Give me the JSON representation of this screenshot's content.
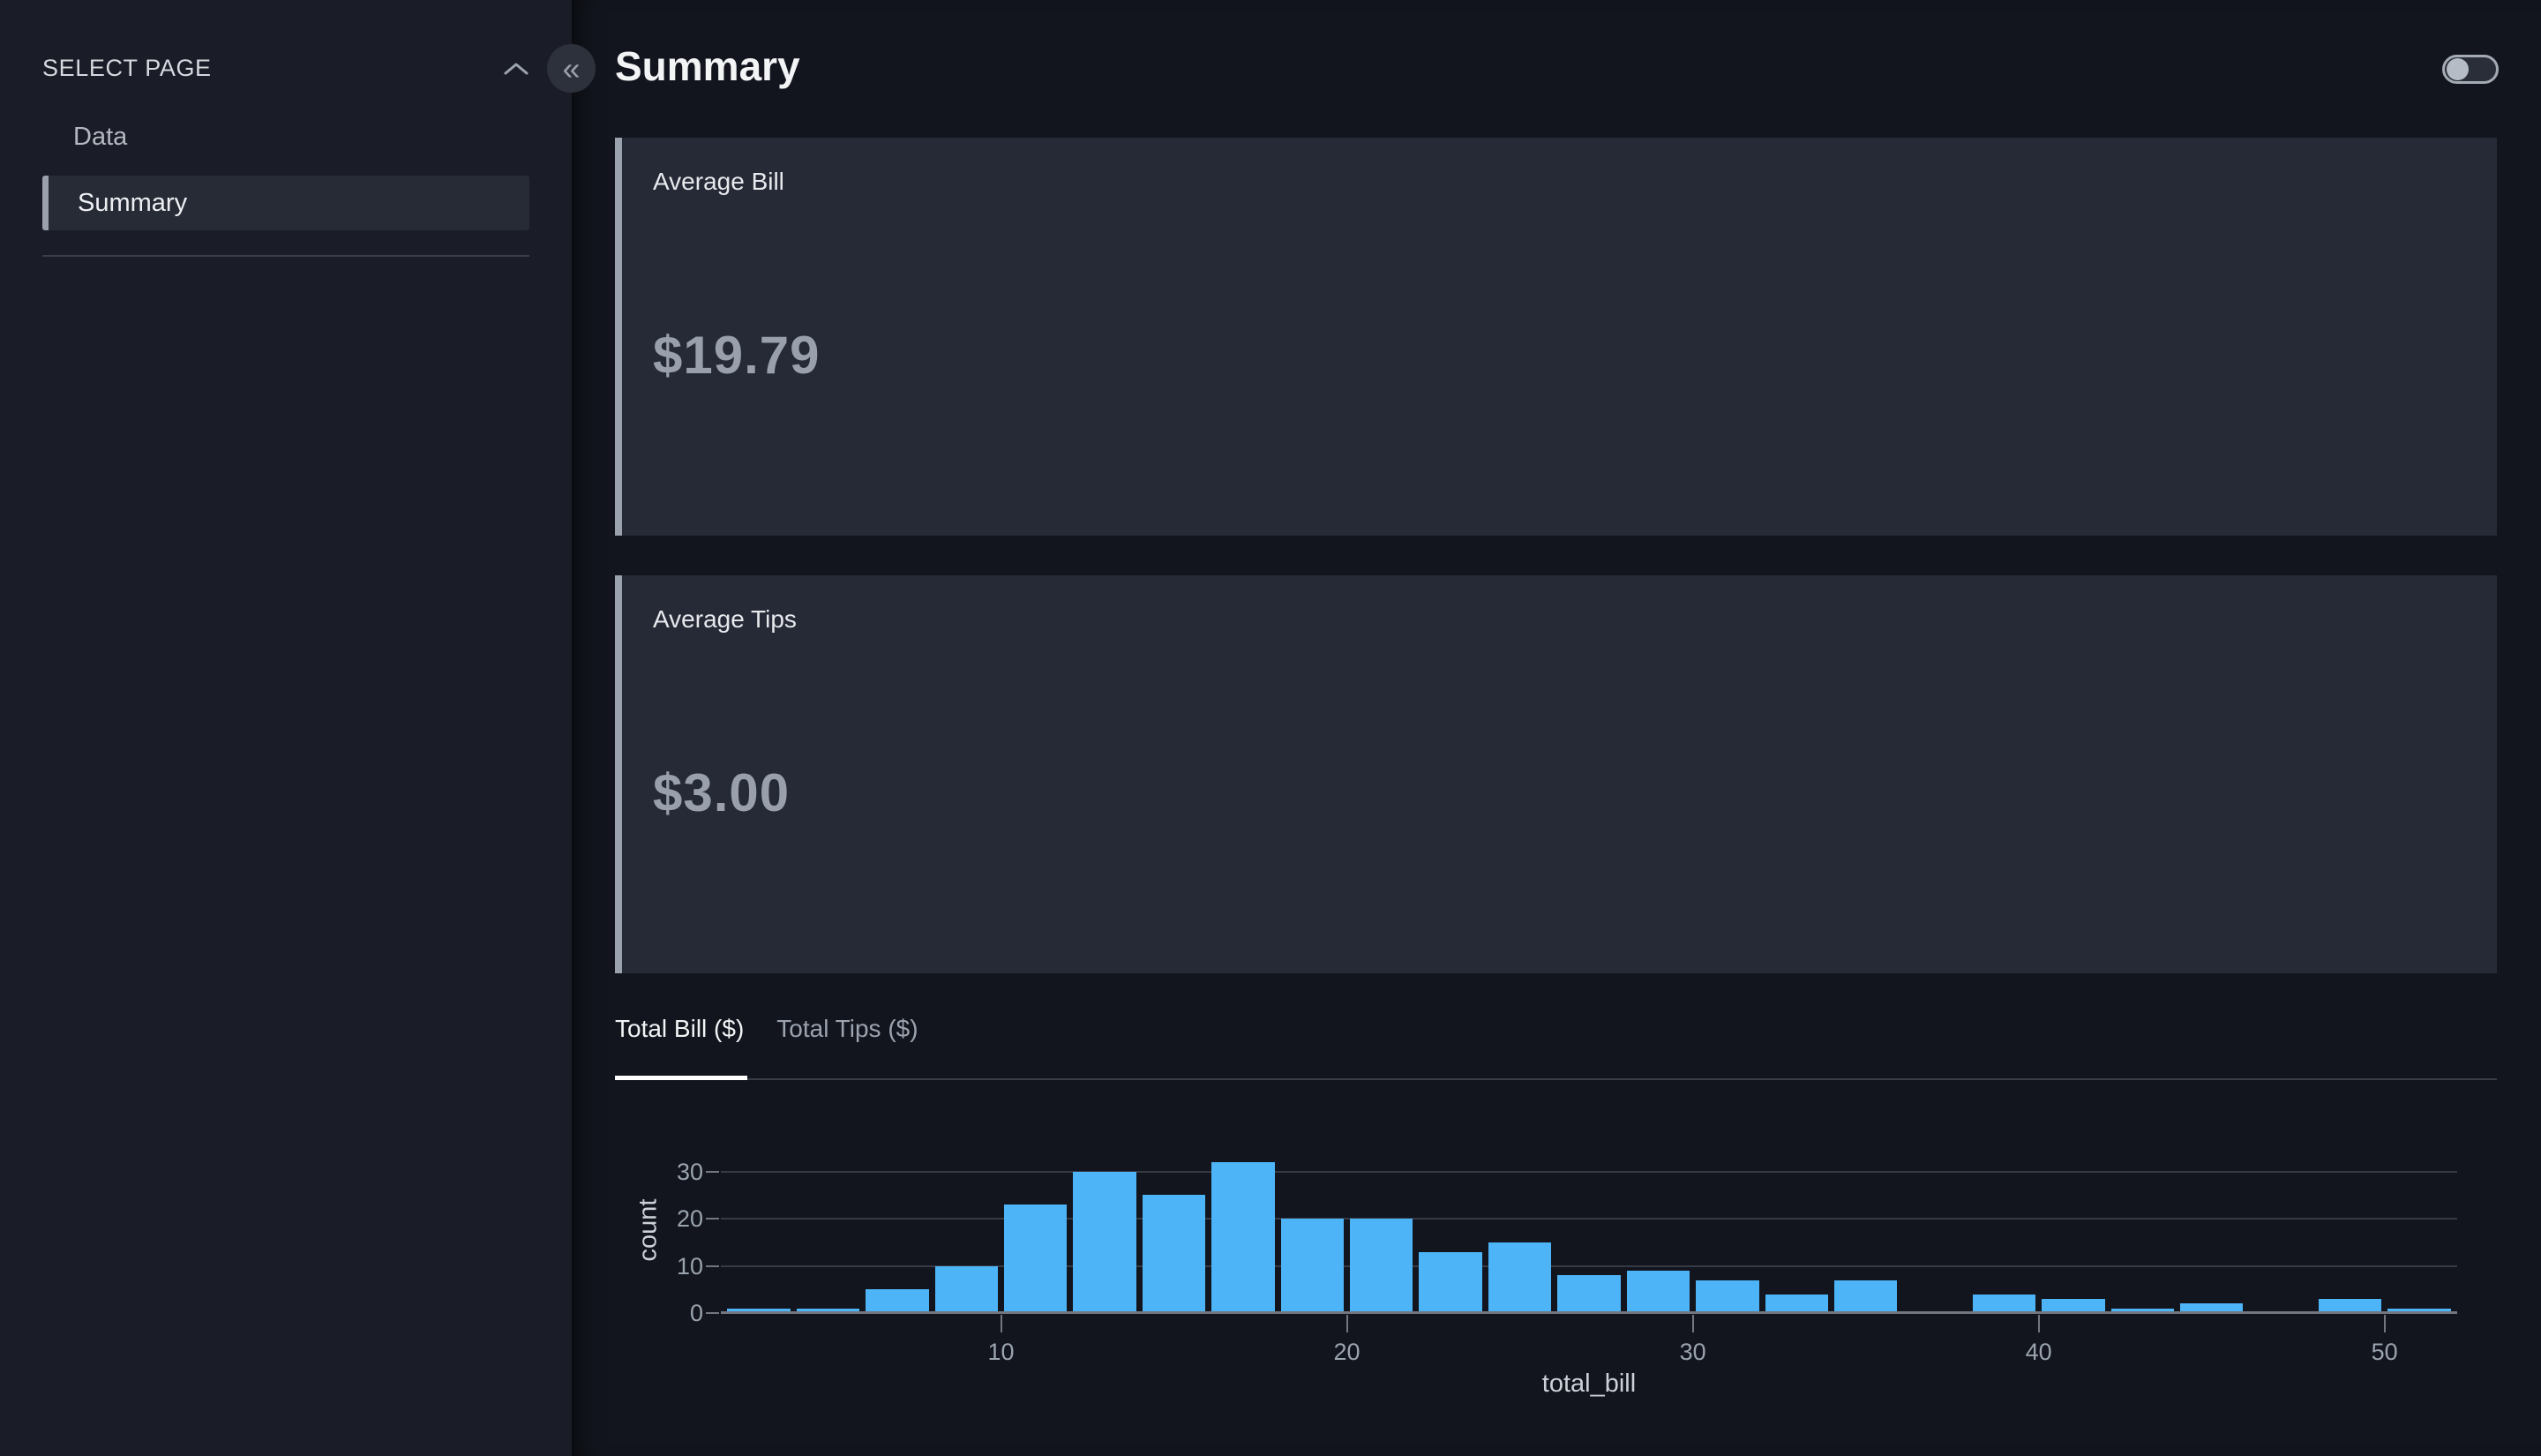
{
  "sidebar": {
    "header": "SELECT PAGE",
    "collapse_glyph": "«",
    "items": [
      {
        "label": "Data",
        "selected": false
      },
      {
        "label": "Summary",
        "selected": true
      }
    ]
  },
  "header": {
    "title": "Summary",
    "toggle_state": "off"
  },
  "cards": [
    {
      "label": "Average Bill",
      "value": "$19.79"
    },
    {
      "label": "Average Tips",
      "value": "$3.00"
    }
  ],
  "tabs": [
    {
      "label": "Total Bill ($)",
      "active": true
    },
    {
      "label": "Total Tips ($)",
      "active": false
    }
  ],
  "chart_data": {
    "type": "bar",
    "subtype": "histogram",
    "title": "",
    "xlabel": "total_bill",
    "ylabel": "count",
    "bin_start": 2,
    "bin_size": 2,
    "bins": [
      2,
      4,
      6,
      8,
      10,
      12,
      14,
      16,
      18,
      20,
      22,
      24,
      26,
      28,
      30,
      32,
      34,
      36,
      38,
      40,
      42,
      44,
      46,
      48,
      50
    ],
    "counts": [
      1,
      1,
      5,
      10,
      23,
      30,
      25,
      32,
      20,
      20,
      13,
      15,
      8,
      9,
      7,
      4,
      7,
      0,
      4,
      3,
      1,
      2,
      0,
      3,
      1
    ],
    "total_observations": 244,
    "x_ticks": [
      10,
      20,
      30,
      40,
      50
    ],
    "y_ticks": [
      0,
      10,
      20,
      30
    ],
    "xlim": [
      1.9,
      52.1
    ],
    "ylim": [
      0,
      35
    ],
    "grid": true,
    "legend": "none"
  },
  "colors": {
    "bar": "#4db4f7",
    "page_bg": "#12151d",
    "sidebar_bg": "#1a1d27",
    "card_bg": "#262a36",
    "card_accent": "#9aa2ad",
    "gridline": "#363a45",
    "axis_line": "#71767f",
    "tick_text": "#9aa3ae",
    "axis_title_text": "#ccd1d8",
    "active_tab_underline": "#ffffff"
  }
}
